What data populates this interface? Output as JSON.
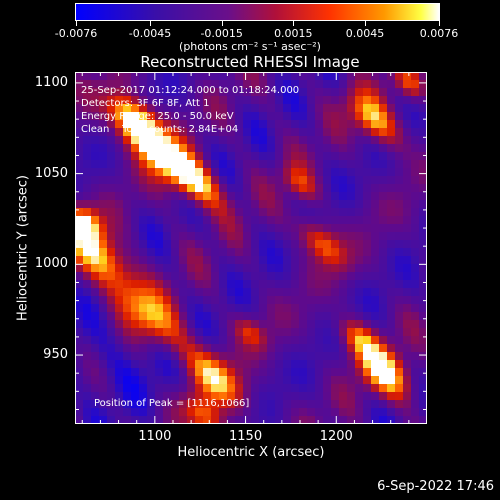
{
  "colorbar": {
    "ticks": [
      "-0.0076",
      "-0.0045",
      "-0.0015",
      "0.0015",
      "0.0045",
      "0.0076"
    ],
    "units": "(photons cm⁻² s⁻¹ asec⁻²)"
  },
  "annotations": {
    "time_range": "25-Sep-2017 01:12:24.000 to 01:18:24.000",
    "detectors": "Detectors: 3F 6F 8F, Att 1",
    "energy_range": "Energy Range: 25.0 - 50.0 keV",
    "clean": "Clean    Total counts: 2.84E+04",
    "peak": "Position of Peak = [1116,1066]"
  },
  "footer": {
    "date": "6-Sep-2022 17:46"
  },
  "chart_data": {
    "type": "heatmap",
    "title": "Reconstructed RHESSI Image",
    "xlabel": "Heliocentric X (arcsec)",
    "ylabel": "Heliocentric Y (arcsec)",
    "xlim": [
      1056,
      1250
    ],
    "ylim": [
      912,
      1106
    ],
    "xticks": [
      1100,
      1150,
      1200
    ],
    "yticks": [
      950,
      1000,
      1050,
      1100
    ],
    "color_range": [
      -0.0076,
      0.0076
    ],
    "peak": [
      1116,
      1066
    ],
    "colormap": [
      "#0000ff",
      "#4b0082",
      "#800080",
      "#b22222",
      "#ff4500",
      "#ffa500",
      "#ffff00",
      "#ffffff"
    ]
  }
}
